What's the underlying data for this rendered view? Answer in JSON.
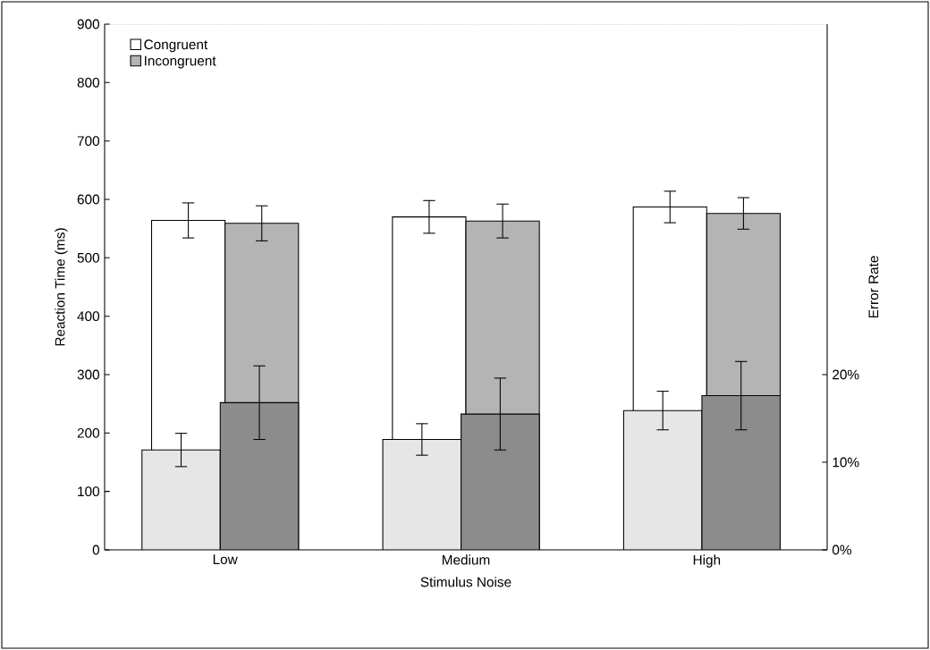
{
  "chart_data": {
    "type": "bar",
    "xlabel": "Stimulus Noise",
    "ylabel": "Reaction Time (ms)",
    "y2label": "Error Rate",
    "categories": [
      "Low",
      "Medium",
      "High"
    ],
    "series": [
      {
        "name": "Congruent",
        "color": "#ffffff",
        "values": [
          564,
          570,
          587
        ],
        "errors": [
          30,
          28,
          27
        ]
      },
      {
        "name": "Incongruent",
        "color": "#b4b4b4",
        "values": [
          559,
          563,
          576
        ],
        "errors": [
          30,
          29,
          27
        ]
      },
      {
        "color": "#e6e6e6",
        "axis": "y2",
        "values": [
          11.4,
          12.6,
          15.9
        ],
        "errors": [
          1.9,
          1.8,
          2.2
        ]
      },
      {
        "color": "#8c8c8c",
        "axis": "y2",
        "values": [
          16.8,
          15.5,
          17.6
        ],
        "errors": [
          4.2,
          4.1,
          3.9
        ]
      }
    ],
    "ylim": [
      0,
      900
    ],
    "yticks": [
      0,
      100,
      200,
      300,
      400,
      500,
      600,
      700,
      800,
      900
    ],
    "y2lim": [
      0,
      60
    ],
    "y2ticks": [
      {
        "value": 0,
        "label": "0%"
      },
      {
        "value": 10,
        "label": "10%"
      },
      {
        "value": 20,
        "label": "20%"
      }
    ],
    "grid": false,
    "legend": "top left"
  }
}
